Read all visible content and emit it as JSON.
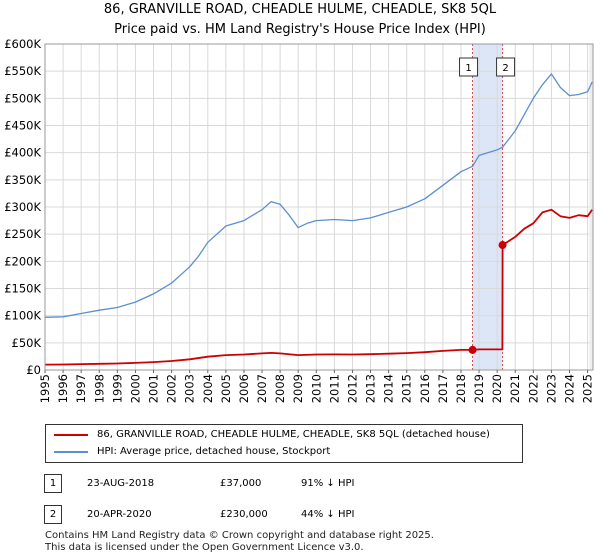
{
  "title_line1": "86, GRANVILLE ROAD, CHEADLE HULME, CHEADLE, SK8 5QL",
  "title_line2": "Price paid vs. HM Land Registry's House Price Index (HPI)",
  "colors": {
    "property": "#cc0000",
    "hpi": "#5b8fd0",
    "shade": "#dde6f7",
    "grid": "#d9d9d9",
    "marker_line": "#dd4444"
  },
  "legend": {
    "property_label": "86, GRANVILLE ROAD, CHEADLE HULME, CHEADLE, SK8 5QL (detached house)",
    "hpi_label": "HPI: Average price, detached house, Stockport"
  },
  "sales": [
    {
      "num": "1",
      "date": "23-AUG-2018",
      "price": "£37,000",
      "hpi_rel": "91% ↓ HPI"
    },
    {
      "num": "2",
      "date": "20-APR-2020",
      "price": "£230,000",
      "hpi_rel": "44% ↓ HPI"
    }
  ],
  "footer": {
    "line1": "Contains HM Land Registry data © Crown copyright and database right 2025.",
    "line2": "This data is licensed under the Open Government Licence v3.0."
  },
  "chart_data": {
    "type": "line",
    "title": "86, GRANVILLE ROAD, CHEADLE HULME, CHEADLE, SK8 5QL — Price paid vs. HM Land Registry's House Price Index (HPI)",
    "xlim": [
      1995,
      2025.3
    ],
    "ylim": [
      0,
      600000
    ],
    "x_ticks": [
      1995,
      1996,
      1997,
      1998,
      1999,
      2000,
      2001,
      2002,
      2003,
      2004,
      2005,
      2006,
      2007,
      2008,
      2009,
      2010,
      2011,
      2012,
      2013,
      2014,
      2015,
      2016,
      2017,
      2018,
      2019,
      2020,
      2021,
      2022,
      2023,
      2024,
      2025
    ],
    "y_ticks": [
      0,
      50000,
      100000,
      150000,
      200000,
      250000,
      300000,
      350000,
      400000,
      450000,
      500000,
      550000,
      600000
    ],
    "y_tick_labels": [
      "£0",
      "£50K",
      "£100K",
      "£150K",
      "£200K",
      "£250K",
      "£300K",
      "£350K",
      "£400K",
      "£450K",
      "£500K",
      "£550K",
      "£600K"
    ],
    "shaded_region": [
      2018.64,
      2020.3
    ],
    "markers": [
      {
        "label": "1",
        "x": 2018.64
      },
      {
        "label": "2",
        "x": 2020.3
      }
    ],
    "series": [
      {
        "name": "HPI: Average price, detached house, Stockport",
        "x": [
          1995,
          1996,
          1997,
          1998,
          1999,
          2000,
          2001,
          2002,
          2003,
          2003.5,
          2004,
          2005,
          2006,
          2007,
          2007.5,
          2008,
          2008.5,
          2009,
          2009.5,
          2010,
          2011,
          2012,
          2013,
          2014,
          2015,
          2016,
          2017,
          2018,
          2018.64,
          2019,
          2020,
          2020.3,
          2021,
          2021.5,
          2022,
          2022.5,
          2023,
          2023.5,
          2024,
          2024.5,
          2025,
          2025.25
        ],
        "values": [
          97000,
          98000,
          104000,
          110000,
          115000,
          125000,
          140000,
          160000,
          190000,
          210000,
          235000,
          265000,
          275000,
          295000,
          310000,
          305000,
          285000,
          262000,
          270000,
          275000,
          277000,
          275000,
          280000,
          290000,
          300000,
          315000,
          340000,
          365000,
          375000,
          395000,
          405000,
          410000,
          440000,
          470000,
          500000,
          525000,
          545000,
          520000,
          505000,
          507000,
          512000,
          530000
        ]
      },
      {
        "name": "86, GRANVILLE ROAD, CHEADLE HULME, CHEADLE, SK8 5QL (detached house)",
        "x": [
          1995,
          1996,
          1997,
          1998,
          1999,
          2000,
          2001,
          2002,
          2003,
          2004,
          2005,
          2006,
          2007,
          2007.5,
          2008,
          2009,
          2010,
          2011,
          2012,
          2013,
          2014,
          2015,
          2016,
          2017,
          2018,
          2018.64,
          2019,
          2020,
          2020.29,
          2020.3,
          2021,
          2021.5,
          2022,
          2022.5,
          2023,
          2023.5,
          2024,
          2024.5,
          2025,
          2025.25
        ],
        "values": [
          10000,
          10200,
          10800,
          11500,
          12000,
          13000,
          14500,
          16600,
          19700,
          24500,
          27500,
          28500,
          30600,
          31500,
          30500,
          27500,
          28500,
          28700,
          28500,
          29000,
          30000,
          31100,
          32700,
          35200,
          37000,
          37000,
          38000,
          38000,
          38000,
          230000,
          245000,
          260000,
          270000,
          290000,
          295000,
          283000,
          280000,
          285000,
          283000,
          295000
        ]
      }
    ]
  }
}
